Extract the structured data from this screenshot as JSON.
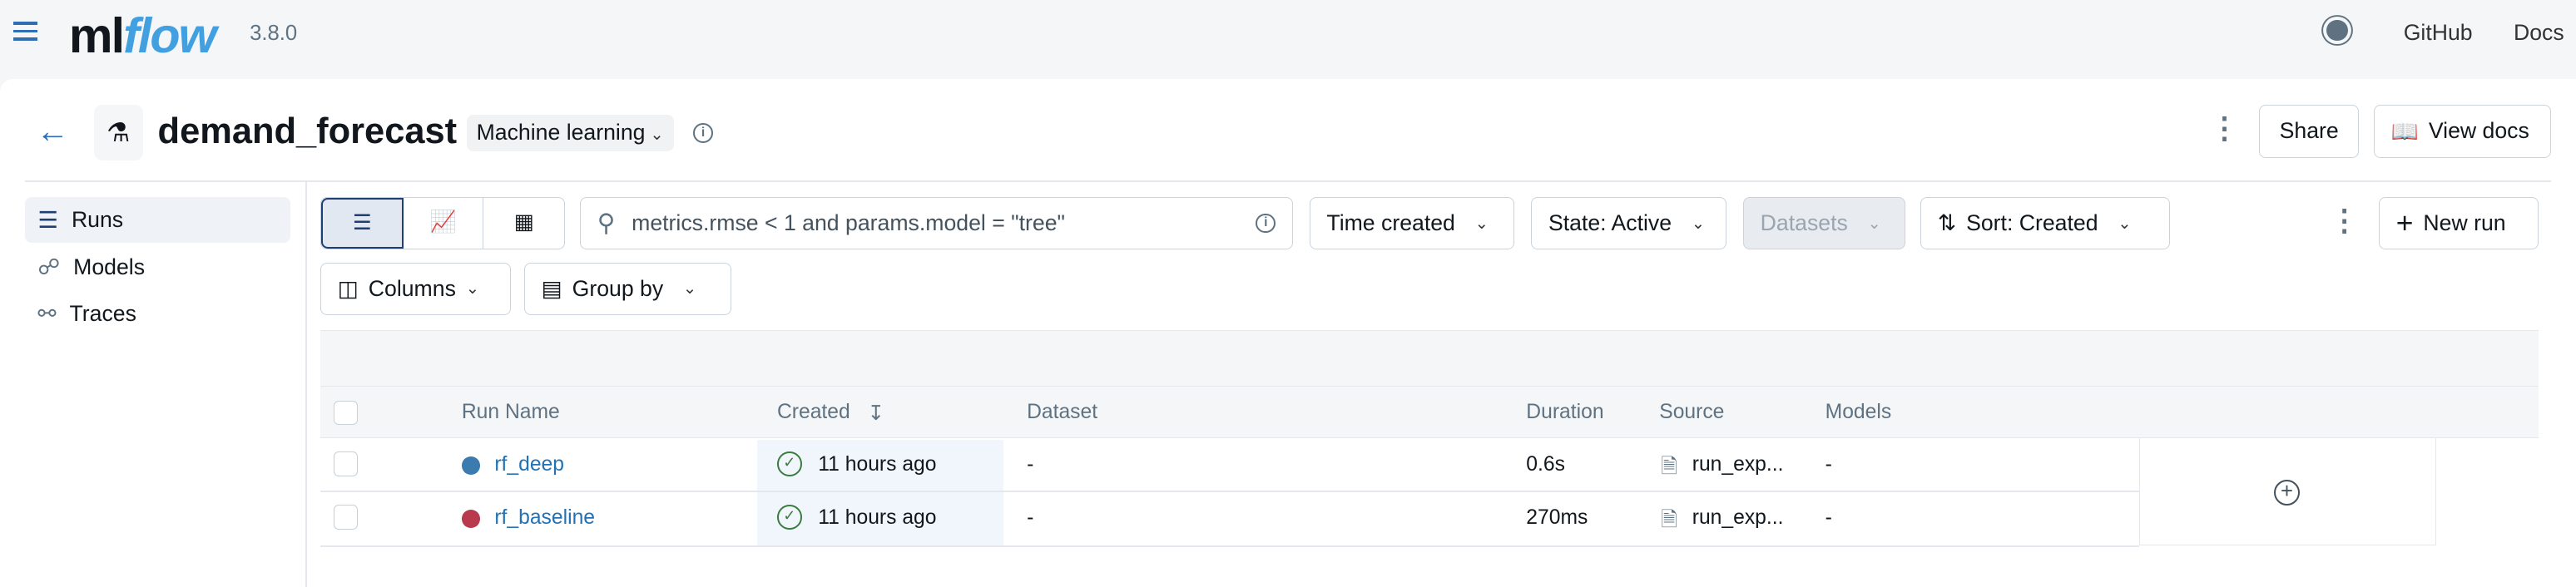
{
  "topbar": {
    "logo": "mlflow",
    "version": "3.8.0",
    "github": "GitHub",
    "docs": "Docs",
    "theme_icon": "sun-icon"
  },
  "header": {
    "title": "demand_forecast",
    "type_tag": "Machine learning",
    "share": "Share",
    "view_docs": "View docs"
  },
  "sidebar": {
    "items": [
      {
        "label": "Runs",
        "icon": "list-icon",
        "active": true
      },
      {
        "label": "Models",
        "icon": "models-icon"
      },
      {
        "label": "Traces",
        "icon": "traces-icon"
      }
    ]
  },
  "toolbar": {
    "search_value": "metrics.rmse < 1 and params.model = \"tree\"",
    "time_created": "Time created",
    "state": "State: Active",
    "datasets": "Datasets",
    "sort": "Sort: Created",
    "new_run": "New run",
    "columns": "Columns",
    "group_by": "Group by"
  },
  "table": {
    "headers": [
      "Run Name",
      "Created",
      "Dataset",
      "Duration",
      "Source",
      "Models"
    ],
    "rows": [
      {
        "name": "rf_deep",
        "color": "#3b7bb0",
        "created": "11 hours ago",
        "dataset": "-",
        "duration": "0.6s",
        "source": "run_exp...",
        "models": "-"
      },
      {
        "name": "rf_baseline",
        "color": "#b83a4c",
        "created": "11 hours ago",
        "dataset": "-",
        "duration": "270ms",
        "source": "run_exp...",
        "models": "-"
      }
    ]
  },
  "colors": {
    "accent": "#2272b4",
    "success": "#3b7d3f"
  }
}
